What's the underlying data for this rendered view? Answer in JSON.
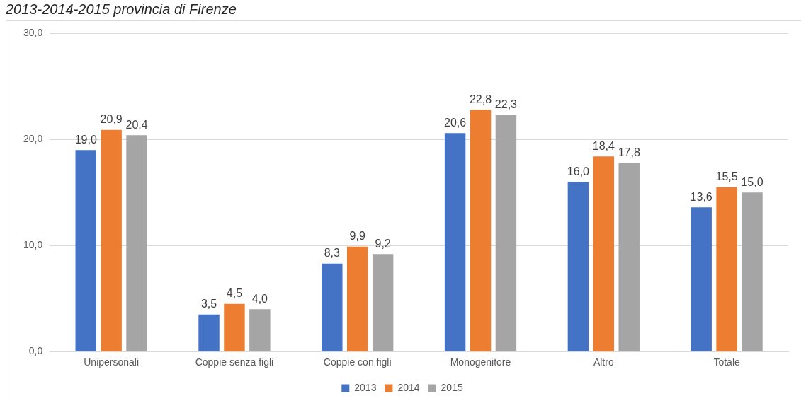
{
  "chart_data": {
    "type": "bar",
    "title": "2013-2014-2015 provincia di Firenze",
    "categories": [
      "Unipersonali",
      "Coppie senza figli",
      "Coppie con figli",
      "Monogenitore",
      "Altro",
      "Totale"
    ],
    "series": [
      {
        "name": "2013",
        "color": "#4472c4",
        "values": [
          19.0,
          3.5,
          8.3,
          20.6,
          16.0,
          13.6
        ],
        "value_labels": [
          "19,0",
          "3,5",
          "8,3",
          "20,6",
          "16,0",
          "13,6"
        ]
      },
      {
        "name": "2014",
        "color": "#ed7d31",
        "values": [
          20.9,
          4.5,
          9.9,
          22.8,
          18.4,
          15.5
        ],
        "value_labels": [
          "20,9",
          "4,5",
          "9,9",
          "22,8",
          "18,4",
          "15,5"
        ]
      },
      {
        "name": "2015",
        "color": "#a5a5a5",
        "values": [
          20.4,
          4.0,
          9.2,
          22.3,
          17.8,
          15.0
        ],
        "value_labels": [
          "20,4",
          "4,0",
          "9,2",
          "22,3",
          "17,8",
          "15,0"
        ]
      }
    ],
    "ylim": [
      0,
      30
    ],
    "yticks": [
      {
        "value": 0,
        "label": "0,0"
      },
      {
        "value": 10,
        "label": "10,0"
      },
      {
        "value": 20,
        "label": "20,0"
      },
      {
        "value": 30,
        "label": "30,0"
      }
    ],
    "grid": "y",
    "legend": "bottom"
  }
}
